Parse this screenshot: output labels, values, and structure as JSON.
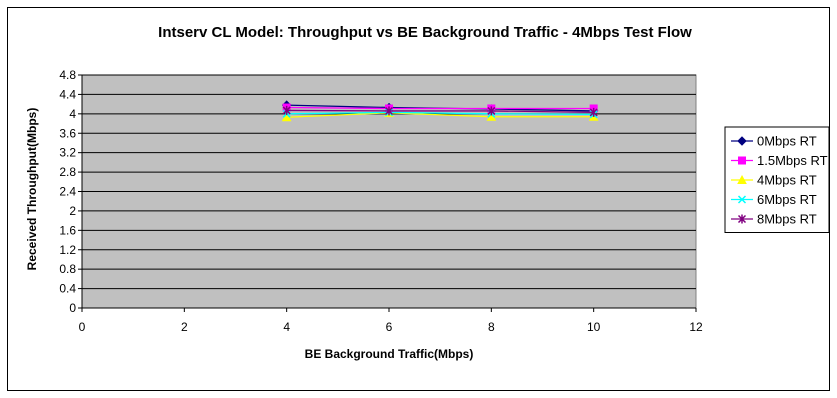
{
  "chart_data": {
    "type": "line",
    "title": "Intserv CL Model: Throughput vs BE Background Traffic - 4Mbps Test Flow",
    "xlabel": "BE Background Traffic(Mbps)",
    "ylabel": "Received Throughput(Mbps)",
    "xlim": [
      0,
      12
    ],
    "ylim": [
      0,
      4.8
    ],
    "x_ticks": [
      "0",
      "2",
      "4",
      "6",
      "8",
      "10",
      "12"
    ],
    "y_ticks": [
      "0",
      "0.4",
      "0.8",
      "1.2",
      "1.6",
      "2",
      "2.4",
      "2.8",
      "3.2",
      "3.6",
      "4",
      "4.4",
      "4.8"
    ],
    "grid": "horizontal",
    "legend_position": "right",
    "plot_background": "#c0c0c0",
    "series": [
      {
        "name": "0Mbps RT",
        "color": "#000080",
        "marker": "diamond",
        "x": [
          4,
          6,
          8,
          10
        ],
        "y": [
          4.18,
          4.13,
          4.1,
          4.06
        ]
      },
      {
        "name": "1.5Mbps RT",
        "color": "#ff00ff",
        "marker": "square",
        "x": [
          4,
          6,
          8,
          10
        ],
        "y": [
          4.13,
          4.11,
          4.11,
          4.11
        ]
      },
      {
        "name": "4Mbps RT",
        "color": "#ffff00",
        "marker": "triangle",
        "x": [
          4,
          6,
          8,
          10
        ],
        "y": [
          3.93,
          4.02,
          3.94,
          3.94
        ]
      },
      {
        "name": "6Mbps RT",
        "color": "#00ffff",
        "marker": "x",
        "x": [
          4,
          6,
          8,
          10
        ],
        "y": [
          4.0,
          4.03,
          4.0,
          3.99
        ]
      },
      {
        "name": "8Mbps RT",
        "color": "#800080",
        "marker": "star",
        "x": [
          4,
          6,
          8,
          10
        ],
        "y": [
          4.07,
          4.06,
          4.06,
          4.03
        ]
      }
    ]
  }
}
